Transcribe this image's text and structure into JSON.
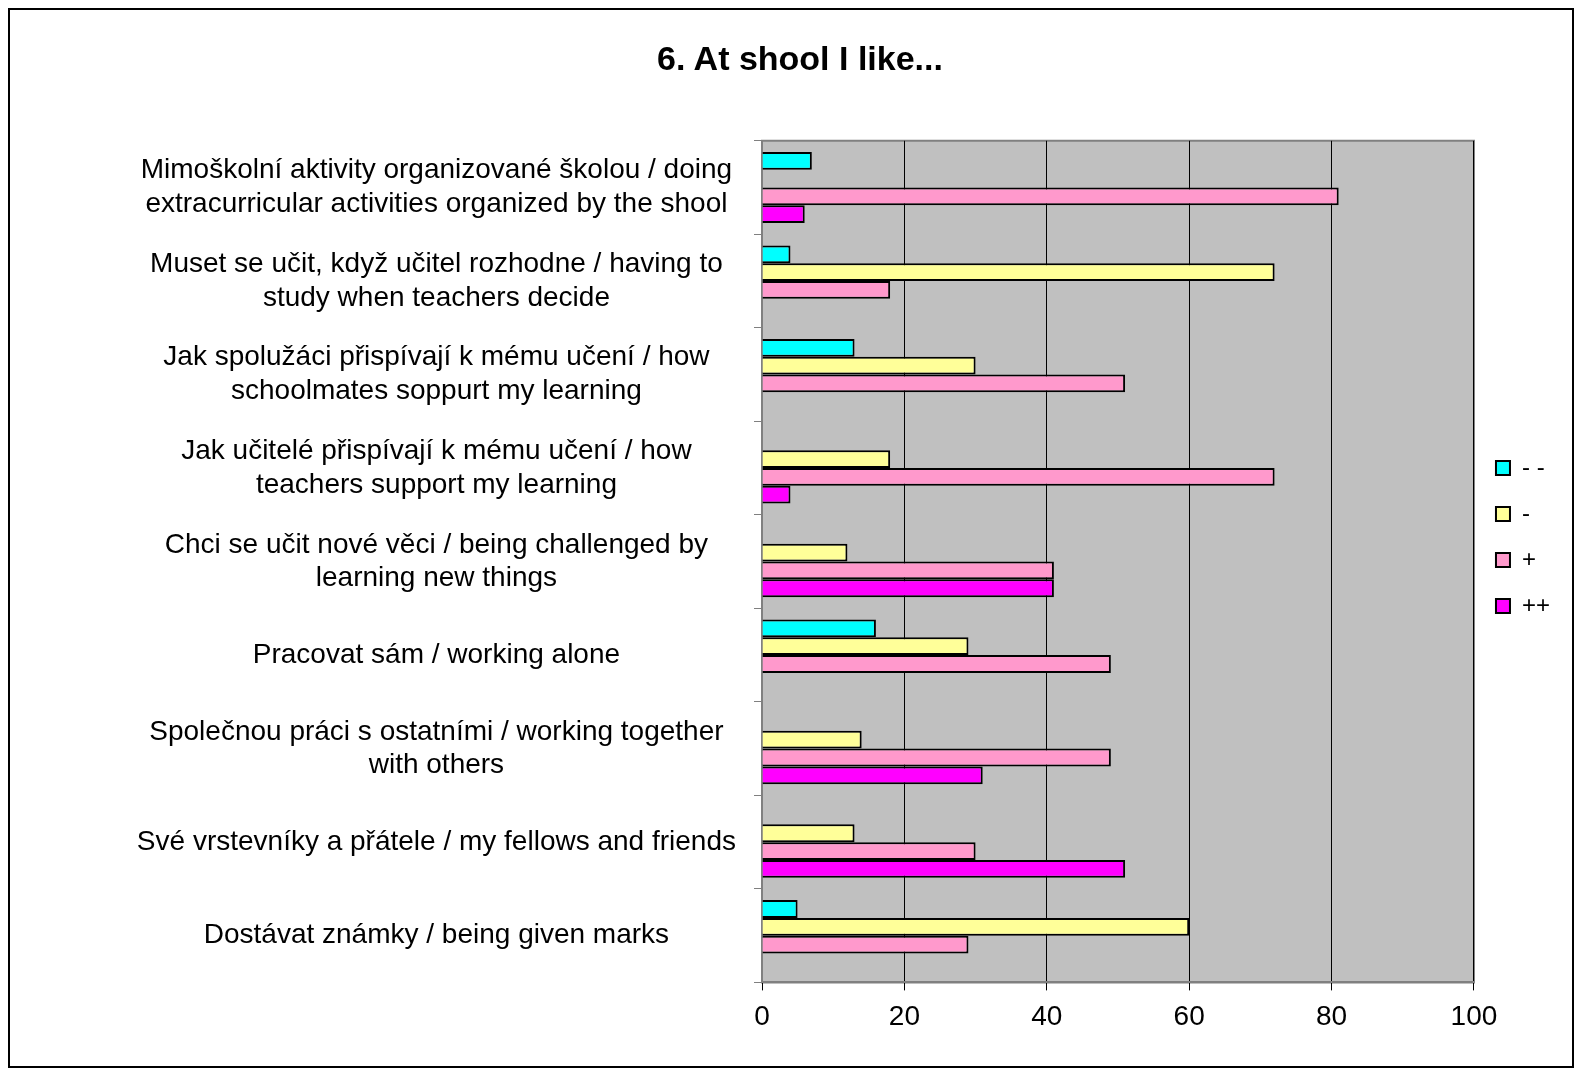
{
  "chart_data": {
    "type": "bar",
    "orientation": "horizontal",
    "title": "6. At shool I like...",
    "categories": [
      "Mimoškolní aktivity organizované školou / doing extracurricular activities organized by the shool",
      "Muset se učit, když učitel rozhodne / having to study when teachers decide",
      "Jak spolužáci přispívají k mému učení / how schoolmates soppurt my learning",
      "Jak učitelé přispívají k mému učení / how teachers support my learning",
      "Chci se učit nové věci / being challenged by learning new things",
      "Pracovat sám / working alone",
      "Společnou práci s ostatními / working together with others",
      "Své vrstevníky a přátele / my fellows and friends",
      "Dostávat známky / being given marks"
    ],
    "series": [
      {
        "name": "- -",
        "color": "#00ffff",
        "values": [
          7,
          4,
          13,
          null,
          null,
          16,
          null,
          null,
          5
        ]
      },
      {
        "name": "-",
        "color": "#ffff99",
        "values": [
          null,
          72,
          30,
          18,
          12,
          29,
          14,
          13,
          60
        ]
      },
      {
        "name": "+",
        "color": "#ff99cc",
        "values": [
          81,
          18,
          51,
          72,
          41,
          49,
          49,
          30,
          29
        ]
      },
      {
        "name": "++",
        "color": "#ff00ff",
        "values": [
          6,
          null,
          null,
          4,
          41,
          null,
          31,
          51,
          null
        ]
      }
    ],
    "xlim": [
      0,
      100
    ],
    "xticks": [
      0,
      20,
      40,
      60,
      80,
      100
    ],
    "grid": "x",
    "legend": "right"
  }
}
